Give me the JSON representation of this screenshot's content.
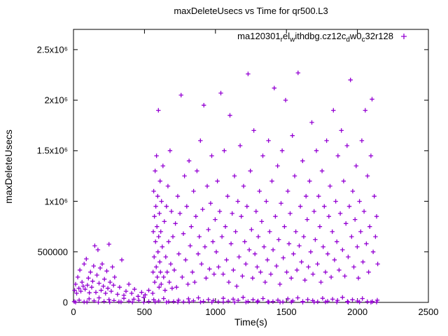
{
  "page": {
    "background": "#ffffff"
  },
  "chart_data": {
    "type": "scatter",
    "title": "maxDeleteUsecs vs Time for qr500.L3",
    "xlabel": "Time(s)",
    "ylabel": "maxDeleteUsecs",
    "xlim": [
      0,
      2500
    ],
    "ylim": [
      0,
      2700000
    ],
    "grid": false,
    "marker": "plus",
    "marker_color": "#9400d3",
    "axis_color": "#000000",
    "xticks": [
      {
        "v": 0,
        "label": "0"
      },
      {
        "v": 500,
        "label": "500"
      },
      {
        "v": 1000,
        "label": "1000"
      },
      {
        "v": 1500,
        "label": "1500"
      },
      {
        "v": 2000,
        "label": "2000"
      },
      {
        "v": 2500,
        "label": "2500"
      }
    ],
    "yticks": [
      {
        "v": 0,
        "label": "0"
      },
      {
        "v": 500000,
        "label": "500000"
      },
      {
        "v": 1000000,
        "label": "1x10⁶"
      },
      {
        "v": 1500000,
        "label": "1.5x10⁶"
      },
      {
        "v": 2000000,
        "label": "2x10⁶"
      },
      {
        "v": 2500000,
        "label": "2.5x10⁶"
      }
    ],
    "legend": {
      "position": "top-right-inside",
      "marker": "plus",
      "label_plain": "ma120301_rel_withdbg.cz12c_dw0_c32r128",
      "label_segments": [
        {
          "text": "ma120301"
        },
        {
          "text": "r",
          "sub": true
        },
        {
          "text": "el"
        },
        {
          "text": "w",
          "sub": true
        },
        {
          "text": "ithdbg.cz12c"
        },
        {
          "text": "d",
          "sub": true
        },
        {
          "text": "w0"
        },
        {
          "text": "c",
          "sub": true
        },
        {
          "text": "32r128"
        }
      ]
    },
    "points": [
      [
        5,
        8000
      ],
      [
        40,
        22000
      ],
      [
        75,
        5000
      ],
      [
        110,
        35000
      ],
      [
        145,
        15000
      ],
      [
        180,
        45000
      ],
      [
        215,
        10000
      ],
      [
        250,
        28000
      ],
      [
        285,
        18000
      ],
      [
        320,
        6000
      ],
      [
        355,
        40000
      ],
      [
        390,
        12000
      ],
      [
        425,
        32000
      ],
      [
        460,
        20000
      ],
      [
        495,
        50000
      ],
      [
        530,
        9000
      ],
      [
        565,
        26000
      ],
      [
        600,
        14000
      ],
      [
        635,
        38000
      ],
      [
        670,
        7000
      ],
      [
        705,
        8000
      ],
      [
        740,
        22000
      ],
      [
        775,
        5000
      ],
      [
        810,
        35000
      ],
      [
        845,
        15000
      ],
      [
        880,
        45000
      ],
      [
        915,
        10000
      ],
      [
        950,
        28000
      ],
      [
        985,
        18000
      ],
      [
        1020,
        6000
      ],
      [
        1055,
        40000
      ],
      [
        1090,
        12000
      ],
      [
        1125,
        32000
      ],
      [
        1160,
        20000
      ],
      [
        1195,
        50000
      ],
      [
        1230,
        9000
      ],
      [
        1265,
        26000
      ],
      [
        1300,
        14000
      ],
      [
        1335,
        38000
      ],
      [
        1370,
        7000
      ],
      [
        1405,
        8000
      ],
      [
        1440,
        22000
      ],
      [
        1475,
        5000
      ],
      [
        1510,
        35000
      ],
      [
        1545,
        15000
      ],
      [
        1580,
        45000
      ],
      [
        1615,
        10000
      ],
      [
        1650,
        28000
      ],
      [
        1685,
        18000
      ],
      [
        1720,
        6000
      ],
      [
        1755,
        40000
      ],
      [
        1790,
        12000
      ],
      [
        1825,
        32000
      ],
      [
        1860,
        20000
      ],
      [
        1895,
        50000
      ],
      [
        1930,
        9000
      ],
      [
        1965,
        26000
      ],
      [
        2000,
        14000
      ],
      [
        2035,
        38000
      ],
      [
        2070,
        7000
      ],
      [
        2105,
        8000
      ],
      [
        2140,
        22000
      ],
      [
        15,
        2000
      ],
      [
        95,
        4000
      ],
      [
        175,
        1500
      ],
      [
        255,
        3000
      ],
      [
        335,
        5000
      ],
      [
        415,
        2500
      ],
      [
        495,
        2000
      ],
      [
        575,
        4000
      ],
      [
        655,
        1500
      ],
      [
        735,
        3000
      ],
      [
        815,
        5000
      ],
      [
        895,
        2500
      ],
      [
        975,
        2000
      ],
      [
        1055,
        4000
      ],
      [
        1135,
        1500
      ],
      [
        1215,
        3000
      ],
      [
        1295,
        5000
      ],
      [
        1375,
        2500
      ],
      [
        1455,
        2000
      ],
      [
        1535,
        4000
      ],
      [
        1615,
        1500
      ],
      [
        1695,
        3000
      ],
      [
        1775,
        5000
      ],
      [
        1855,
        2500
      ],
      [
        1935,
        2000
      ],
      [
        2015,
        4000
      ],
      [
        2095,
        1500
      ],
      [
        2135,
        3000
      ],
      [
        8,
        120000
      ],
      [
        15,
        180000
      ],
      [
        22,
        90000
      ],
      [
        30,
        250000
      ],
      [
        38,
        140000
      ],
      [
        45,
        320000
      ],
      [
        52,
        110000
      ],
      [
        60,
        200000
      ],
      [
        68,
        160000
      ],
      [
        75,
        380000
      ],
      [
        82,
        130000
      ],
      [
        90,
        430000
      ],
      [
        98,
        170000
      ],
      [
        105,
        240000
      ],
      [
        112,
        95000
      ],
      [
        120,
        300000
      ],
      [
        128,
        150000
      ],
      [
        135,
        210000
      ],
      [
        142,
        360000
      ],
      [
        150,
        560000
      ],
      [
        158,
        100000
      ],
      [
        165,
        270000
      ],
      [
        172,
        520000
      ],
      [
        180,
        190000
      ],
      [
        188,
        340000
      ],
      [
        195,
        120000
      ],
      [
        202,
        380000
      ],
      [
        210,
        160000
      ],
      [
        218,
        230000
      ],
      [
        226,
        90000
      ],
      [
        234,
        310000
      ],
      [
        242,
        140000
      ],
      [
        250,
        575000
      ],
      [
        258,
        200000
      ],
      [
        266,
        110000
      ],
      [
        274,
        350000
      ],
      [
        282,
        170000
      ],
      [
        290,
        250000
      ],
      [
        310,
        80000
      ],
      [
        325,
        150000
      ],
      [
        340,
        420000
      ],
      [
        355,
        70000
      ],
      [
        370,
        110000
      ],
      [
        390,
        180000
      ],
      [
        410,
        90000
      ],
      [
        430,
        130000
      ],
      [
        455,
        60000
      ],
      [
        480,
        100000
      ],
      [
        505,
        75000
      ],
      [
        530,
        120000
      ],
      [
        558,
        90000
      ],
      [
        560,
        300000
      ],
      [
        562,
        700000
      ],
      [
        565,
        1100000
      ],
      [
        568,
        450000
      ],
      [
        570,
        850000
      ],
      [
        572,
        200000
      ],
      [
        575,
        1300000
      ],
      [
        578,
        600000
      ],
      [
        580,
        950000
      ],
      [
        583,
        350000
      ],
      [
        585,
        1450000
      ],
      [
        588,
        750000
      ],
      [
        590,
        250000
      ],
      [
        593,
        1050000
      ],
      [
        595,
        500000
      ],
      [
        598,
        1900000
      ],
      [
        600,
        650000
      ],
      [
        603,
        150000
      ],
      [
        605,
        880000
      ],
      [
        608,
        400000
      ],
      [
        610,
        1200000
      ],
      [
        613,
        300000
      ],
      [
        615,
        700000
      ],
      [
        618,
        180000
      ],
      [
        620,
        1000000
      ],
      [
        625,
        550000
      ],
      [
        630,
        1350000
      ],
      [
        635,
        250000
      ],
      [
        640,
        800000
      ],
      [
        645,
        120000
      ],
      [
        650,
        450000
      ],
      [
        655,
        950000
      ],
      [
        660,
        300000
      ],
      [
        665,
        1150000
      ],
      [
        670,
        600000
      ],
      [
        675,
        200000
      ],
      [
        680,
        1500000
      ],
      [
        685,
        380000
      ],
      [
        690,
        900000
      ],
      [
        695,
        140000
      ],
      [
        700,
        650000
      ],
      [
        710,
        320000
      ],
      [
        718,
        780000
      ],
      [
        726,
        150000
      ],
      [
        734,
        1050000
      ],
      [
        742,
        480000
      ],
      [
        750,
        880000
      ],
      [
        758,
        2050000
      ],
      [
        766,
        250000
      ],
      [
        774,
        680000
      ],
      [
        782,
        1250000
      ],
      [
        790,
        420000
      ],
      [
        798,
        950000
      ],
      [
        806,
        180000
      ],
      [
        814,
        1400000
      ],
      [
        822,
        560000
      ],
      [
        830,
        750000
      ],
      [
        838,
        300000
      ],
      [
        846,
        1100000
      ],
      [
        854,
        200000
      ],
      [
        862,
        850000
      ],
      [
        870,
        1300000
      ],
      [
        878,
        480000
      ],
      [
        886,
        650000
      ],
      [
        894,
        1600000
      ],
      [
        902,
        380000
      ],
      [
        910,
        920000
      ],
      [
        918,
        1950000
      ],
      [
        926,
        550000
      ],
      [
        934,
        240000
      ],
      [
        942,
        1150000
      ],
      [
        950,
        720000
      ],
      [
        958,
        330000
      ],
      [
        966,
        980000
      ],
      [
        974,
        1450000
      ],
      [
        982,
        600000
      ],
      [
        990,
        280000
      ],
      [
        998,
        820000
      ],
      [
        1006,
        500000
      ],
      [
        1014,
        1200000
      ],
      [
        1022,
        350000
      ],
      [
        1030,
        900000
      ],
      [
        1038,
        2070000
      ],
      [
        1046,
        650000
      ],
      [
        1054,
        280000
      ],
      [
        1062,
        1500000
      ],
      [
        1070,
        750000
      ],
      [
        1078,
        420000
      ],
      [
        1086,
        1050000
      ],
      [
        1094,
        200000
      ],
      [
        1102,
        1850000
      ],
      [
        1110,
        580000
      ],
      [
        1118,
        880000
      ],
      [
        1126,
        320000
      ],
      [
        1134,
        1250000
      ],
      [
        1142,
        700000
      ],
      [
        1150,
        160000
      ],
      [
        1158,
        1000000
      ],
      [
        1166,
        450000
      ],
      [
        1174,
        1550000
      ],
      [
        1182,
        850000
      ],
      [
        1190,
        260000
      ],
      [
        1198,
        1150000
      ],
      [
        1206,
        600000
      ],
      [
        1214,
        380000
      ],
      [
        1222,
        950000
      ],
      [
        1230,
        2260000
      ],
      [
        1238,
        520000
      ],
      [
        1246,
        1300000
      ],
      [
        1254,
        720000
      ],
      [
        1262,
        240000
      ],
      [
        1270,
        1700000
      ],
      [
        1278,
        480000
      ],
      [
        1286,
        900000
      ],
      [
        1294,
        350000
      ],
      [
        1302,
        650000
      ],
      [
        1310,
        1100000
      ],
      [
        1318,
        300000
      ],
      [
        1326,
        800000
      ],
      [
        1334,
        1450000
      ],
      [
        1342,
        550000
      ],
      [
        1350,
        200000
      ],
      [
        1358,
        1000000
      ],
      [
        1366,
        420000
      ],
      [
        1374,
        1600000
      ],
      [
        1382,
        700000
      ],
      [
        1390,
        280000
      ],
      [
        1398,
        1200000
      ],
      [
        1406,
        520000
      ],
      [
        1414,
        2120000
      ],
      [
        1422,
        850000
      ],
      [
        1430,
        360000
      ],
      [
        1438,
        1350000
      ],
      [
        1446,
        620000
      ],
      [
        1454,
        180000
      ],
      [
        1462,
        980000
      ],
      [
        1470,
        1500000
      ],
      [
        1478,
        440000
      ],
      [
        1486,
        750000
      ],
      [
        1494,
        2000000
      ],
      [
        1502,
        300000
      ],
      [
        1510,
        1100000
      ],
      [
        1518,
        580000
      ],
      [
        1526,
        880000
      ],
      [
        1534,
        240000
      ],
      [
        1542,
        1650000
      ],
      [
        1550,
        480000
      ],
      [
        1558,
        1250000
      ],
      [
        1566,
        700000
      ],
      [
        1574,
        320000
      ],
      [
        1582,
        2270000
      ],
      [
        1590,
        560000
      ],
      [
        1598,
        950000
      ],
      [
        1606,
        400000
      ],
      [
        1614,
        1400000
      ],
      [
        1622,
        650000
      ],
      [
        1630,
        220000
      ],
      [
        1638,
        1050000
      ],
      [
        1646,
        820000
      ],
      [
        1655,
        350000
      ],
      [
        1663,
        1200000
      ],
      [
        1671,
        500000
      ],
      [
        1679,
        1780000
      ],
      [
        1687,
        280000
      ],
      [
        1695,
        900000
      ],
      [
        1703,
        620000
      ],
      [
        1711,
        1500000
      ],
      [
        1719,
        380000
      ],
      [
        1727,
        1050000
      ],
      [
        1735,
        750000
      ],
      [
        1743,
        200000
      ],
      [
        1751,
        1300000
      ],
      [
        1759,
        550000
      ],
      [
        1767,
        950000
      ],
      [
        1775,
        300000
      ],
      [
        1783,
        1600000
      ],
      [
        1791,
        480000
      ],
      [
        1799,
        850000
      ],
      [
        1807,
        1150000
      ],
      [
        1815,
        250000
      ],
      [
        1823,
        700000
      ],
      [
        1831,
        1900000
      ],
      [
        1839,
        420000
      ],
      [
        1847,
        1000000
      ],
      [
        1855,
        600000
      ],
      [
        1863,
        1450000
      ],
      [
        1871,
        320000
      ],
      [
        1879,
        880000
      ],
      [
        1887,
        1700000
      ],
      [
        1895,
        520000
      ],
      [
        1903,
        1200000
      ],
      [
        1911,
        260000
      ],
      [
        1919,
        780000
      ],
      [
        1927,
        1550000
      ],
      [
        1935,
        450000
      ],
      [
        1943,
        950000
      ],
      [
        1951,
        2200000
      ],
      [
        1959,
        650000
      ],
      [
        1967,
        1100000
      ],
      [
        1975,
        350000
      ],
      [
        1983,
        820000
      ],
      [
        1991,
        1350000
      ],
      [
        1999,
        550000
      ],
      [
        2007,
        240000
      ],
      [
        2015,
        1000000
      ],
      [
        2023,
        700000
      ],
      [
        2031,
        1600000
      ],
      [
        2039,
        400000
      ],
      [
        2047,
        900000
      ],
      [
        2055,
        1900000
      ],
      [
        2063,
        580000
      ],
      [
        2071,
        1250000
      ],
      [
        2079,
        300000
      ],
      [
        2087,
        750000
      ],
      [
        2095,
        1450000
      ],
      [
        2103,
        2010000
      ],
      [
        2111,
        500000
      ],
      [
        2119,
        1050000
      ],
      [
        2127,
        650000
      ],
      [
        2135,
        850000
      ],
      [
        2143,
        380000
      ]
    ]
  }
}
